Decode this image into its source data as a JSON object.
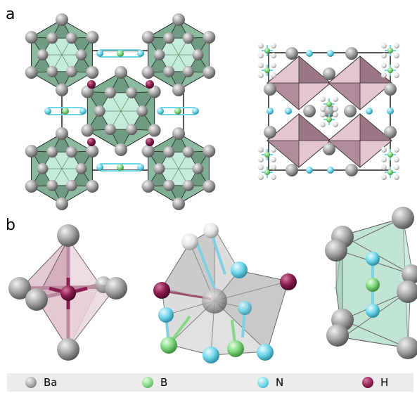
{
  "panels": {
    "a": "a",
    "b": "b"
  },
  "legend": [
    {
      "symbol": "Ba",
      "color": "#a6a6a6"
    },
    {
      "symbol": "B",
      "color": "#7fd47f"
    },
    {
      "symbol": "N",
      "color": "#6cd2e6"
    },
    {
      "symbol": "H",
      "color": "#8a2050"
    }
  ],
  "colors": {
    "ba": "#9e9e9e",
    "b": "#7ed67e",
    "n": "#6fd6ea",
    "h": "#8a1d4f",
    "ico_face_dark": "#6f9a83",
    "ico_face_light": "#c5ecd9",
    "pink_face_dark": "#9b7686",
    "pink_face_light": "#e6c5d2",
    "grey_poly": "#c8c8c8",
    "green_poly": "#bfe6d4"
  }
}
